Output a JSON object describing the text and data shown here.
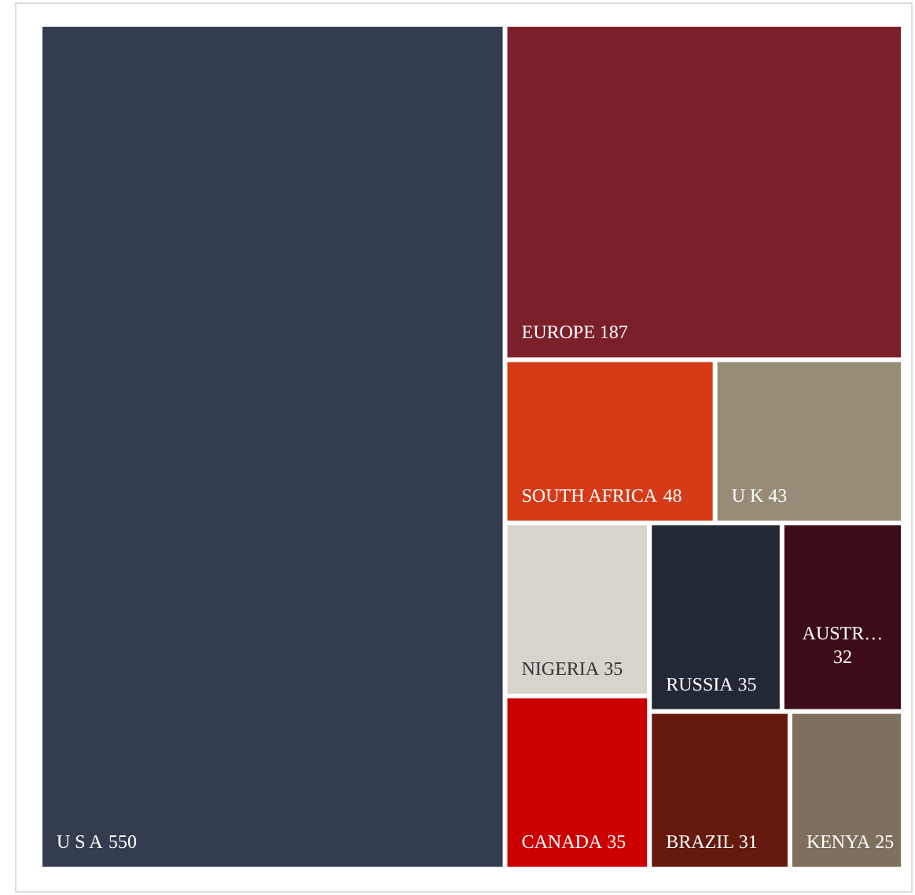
{
  "chart_data": {
    "type": "other",
    "data_labels": true,
    "categories": [
      "U S A",
      "EUROPE",
      "SOUTH AFRICA",
      "U K",
      "NIGERIA",
      "RUSSIA",
      "AUSTR…",
      "CANADA",
      "BRAZIL",
      "KENYA"
    ],
    "values": [
      550,
      187,
      48,
      43,
      35,
      35,
      32,
      35,
      31,
      25
    ],
    "colors": [
      "#333d4f",
      "#7b1f2b",
      "#d63a17",
      "#978c76",
      "#d8d3cb",
      "#222834",
      "#3d0d17",
      "#cc0000",
      "#651a0d",
      "#7f6f5d"
    ]
  }
}
